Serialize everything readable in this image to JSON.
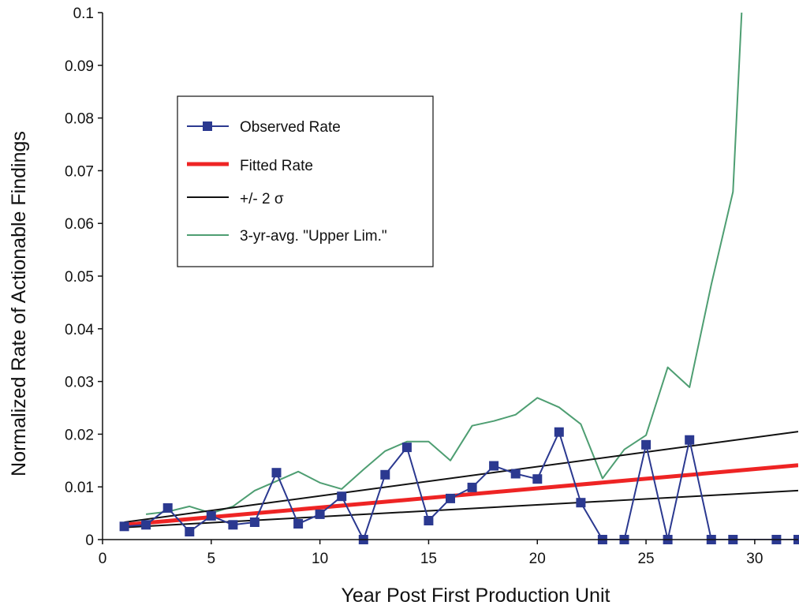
{
  "chart_data": {
    "type": "line",
    "title": "",
    "xlabel": "Year Post First Production Unit",
    "ylabel": "Normalized Rate of Actionable Findings",
    "xlim": [
      0,
      32
    ],
    "ylim": [
      0,
      0.1
    ],
    "x_ticks": [
      0,
      5,
      10,
      15,
      20,
      25,
      30
    ],
    "y_ticks": [
      0,
      0.01,
      0.02,
      0.03,
      0.04,
      0.05,
      0.06,
      0.07,
      0.08,
      0.09,
      0.1
    ],
    "x_tick_labels": [
      "0",
      "5",
      "10",
      "15",
      "20",
      "25",
      "30"
    ],
    "y_tick_labels": [
      "0",
      "0.01",
      "0.02",
      "0.03",
      "0.04",
      "0.05",
      "0.06",
      "0.07",
      "0.08",
      "0.09",
      "0.1"
    ],
    "grid": false,
    "legend_position": "upper-left",
    "series": [
      {
        "name": "Observed Rate",
        "color": "#2b3990",
        "marker": "square",
        "points": [
          [
            1,
            0.0025
          ],
          [
            2,
            0.0028
          ],
          [
            3,
            0.006
          ],
          [
            4,
            0.0015
          ],
          [
            5,
            0.0045
          ],
          [
            6,
            0.0028
          ],
          [
            7,
            0.0033
          ],
          [
            8,
            0.0127
          ],
          [
            9,
            0.003
          ],
          [
            10,
            0.0048
          ],
          [
            11,
            0.0082
          ],
          [
            12,
            0
          ],
          [
            13,
            0.0123
          ],
          [
            14,
            0.0175
          ],
          [
            15,
            0.0036
          ],
          [
            16,
            0.0078
          ],
          [
            17,
            0.0099
          ],
          [
            18,
            0.014
          ],
          [
            19,
            0.0125
          ],
          [
            20,
            0.0115
          ],
          [
            21,
            0.0204
          ],
          [
            22,
            0.007
          ],
          [
            23,
            0
          ],
          [
            24,
            0
          ],
          [
            25,
            0.018
          ],
          [
            26,
            0
          ],
          [
            27,
            0.0189
          ],
          [
            28,
            0
          ],
          [
            29,
            0
          ],
          [
            31,
            0
          ],
          [
            32,
            0
          ]
        ]
      },
      {
        "name": "Fitted Rate",
        "color": "#ee2424",
        "points": [
          [
            1,
            0.0028
          ],
          [
            32,
            0.0141
          ]
        ]
      },
      {
        "name": "+/- 2 σ",
        "color": "#111111",
        "points": [
          [
            1,
            0.0033
          ],
          [
            32,
            0.0205
          ]
        ]
      },
      {
        "name": "",
        "color": "#111111",
        "points": [
          [
            1,
            0.0023
          ],
          [
            32,
            0.0093
          ]
        ]
      },
      {
        "name": "3-yr-avg. \"Upper Lim.\"",
        "color": "#4e9e72",
        "points": [
          [
            2,
            0.0048
          ],
          [
            3,
            0.0053
          ],
          [
            4,
            0.0063
          ],
          [
            5,
            0.005
          ],
          [
            6,
            0.0063
          ],
          [
            7,
            0.0093
          ],
          [
            8,
            0.0111
          ],
          [
            9,
            0.0129
          ],
          [
            10,
            0.0108
          ],
          [
            11,
            0.0096
          ],
          [
            12,
            0.0133
          ],
          [
            13,
            0.0168
          ],
          [
            14,
            0.0186
          ],
          [
            15,
            0.0186
          ],
          [
            16,
            0.015
          ],
          [
            17,
            0.0216
          ],
          [
            18,
            0.0225
          ],
          [
            19,
            0.0237
          ],
          [
            20,
            0.0269
          ],
          [
            21,
            0.0251
          ],
          [
            22,
            0.0219
          ],
          [
            23,
            0.0116
          ],
          [
            24,
            0.0171
          ],
          [
            25,
            0.0198
          ],
          [
            26,
            0.0327
          ],
          [
            27,
            0.0289
          ],
          [
            28,
            0.0484
          ],
          [
            29,
            0.066
          ],
          [
            29.4,
            0.1
          ]
        ]
      }
    ]
  }
}
